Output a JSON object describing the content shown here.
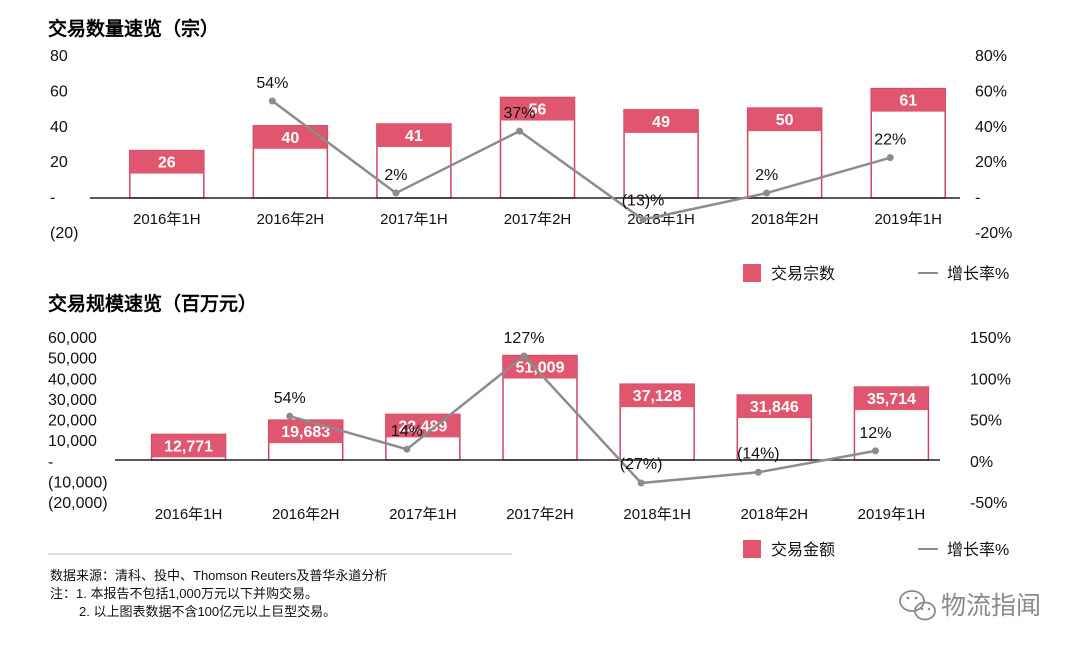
{
  "colors": {
    "bar_fill": "#e0566e",
    "bar_outline": "#d1465f",
    "line": "#8c8c8c",
    "axis": "#222222",
    "divider": "#bbbbbb",
    "watermark": "#8a8a8a"
  },
  "chart_data": [
    {
      "type": "bar",
      "title": "交易数量速览（宗）",
      "categories": [
        "2016年1H",
        "2016年2H",
        "2017年1H",
        "2017年2H",
        "2018年1H",
        "2018年2H",
        "2019年1H"
      ],
      "series": [
        {
          "name": "交易宗数",
          "type": "bar",
          "axis": "left",
          "values": [
            26,
            40,
            41,
            56,
            49,
            50,
            61
          ],
          "labels": [
            "26",
            "40",
            "41",
            "56",
            "49",
            "50",
            "61"
          ]
        },
        {
          "name": "增长率%",
          "type": "line",
          "axis": "right",
          "values": [
            null,
            54,
            2,
            37,
            -13,
            2,
            22
          ],
          "labels": [
            "",
            "54%",
            "2%",
            "37%",
            "(13)%",
            "2%",
            "22%"
          ]
        }
      ],
      "ylim": [
        -20,
        80
      ],
      "y_ticks": [
        {
          "value": 80,
          "label": "80"
        },
        {
          "value": 60,
          "label": "60"
        },
        {
          "value": 40,
          "label": "40"
        },
        {
          "value": 20,
          "label": "20"
        },
        {
          "value": 0,
          "label": "-"
        },
        {
          "value": -20,
          "label": "(20)"
        }
      ],
      "y2lim": [
        -20,
        80
      ],
      "y2_ticks": [
        {
          "value": 80,
          "label": "80%"
        },
        {
          "value": 60,
          "label": "60%"
        },
        {
          "value": 40,
          "label": "40%"
        },
        {
          "value": 20,
          "label": "20%"
        },
        {
          "value": 0,
          "label": "-"
        },
        {
          "value": -20,
          "label": "-20%"
        }
      ],
      "legend": [
        "交易宗数",
        "增长率%"
      ],
      "legend_position": "bottom-right",
      "grid": false
    },
    {
      "type": "bar",
      "title": "交易规模速览（百万元）",
      "categories": [
        "2016年1H",
        "2016年2H",
        "2017年1H",
        "2017年2H",
        "2018年1H",
        "2018年2H",
        "2019年1H"
      ],
      "series": [
        {
          "name": "交易金额",
          "type": "bar",
          "axis": "left",
          "values": [
            12771,
            19683,
            22489,
            51009,
            37128,
            31846,
            35714
          ],
          "labels": [
            "12,771",
            "19,683",
            "22,489",
            "51,009",
            "37,128",
            "31,846",
            "35,714"
          ]
        },
        {
          "name": "增长率%",
          "type": "line",
          "axis": "right",
          "values": [
            null,
            54,
            14,
            127,
            -27,
            -14,
            12
          ],
          "labels": [
            "",
            "54%",
            "14%",
            "127%",
            "(27%)",
            "(14%)",
            "12%"
          ]
        }
      ],
      "ylim": [
        -20000,
        60000
      ],
      "y_ticks": [
        {
          "value": 60000,
          "label": "60,000"
        },
        {
          "value": 50000,
          "label": "50,000"
        },
        {
          "value": 40000,
          "label": "40,000"
        },
        {
          "value": 30000,
          "label": "30,000"
        },
        {
          "value": 20000,
          "label": "20,000"
        },
        {
          "value": 10000,
          "label": "10,000"
        },
        {
          "value": 0,
          "label": "-"
        },
        {
          "value": -10000,
          "label": "(10,000)"
        },
        {
          "value": -20000,
          "label": "(20,000)"
        }
      ],
      "y2lim": [
        -50,
        150
      ],
      "y2_ticks": [
        {
          "value": 150,
          "label": "150%"
        },
        {
          "value": 100,
          "label": "100%"
        },
        {
          "value": 50,
          "label": "50%"
        },
        {
          "value": 0,
          "label": "0%"
        },
        {
          "value": -50,
          "label": "-50%"
        }
      ],
      "legend": [
        "交易金额",
        "增长率%"
      ],
      "legend_position": "bottom-right",
      "grid": false
    }
  ],
  "footer": {
    "source": "数据来源：清科、投中、Thomson Reuters及普华永道分析",
    "note1": "注：1. 本报告不包括1,000万元以下并购交易。",
    "note2": "2. 以上图表数据不含100亿元以上巨型交易。"
  },
  "watermark": {
    "icon": "wechat-icon",
    "text": "物流指闻"
  }
}
